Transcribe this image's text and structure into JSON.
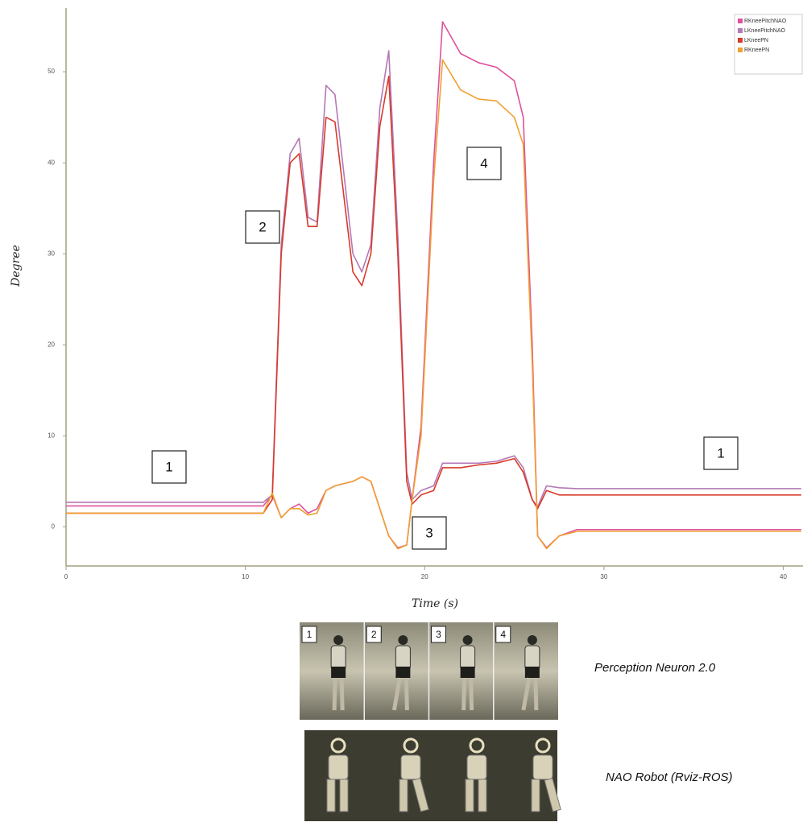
{
  "chart_data": {
    "type": "line",
    "x_label": "Time (s)",
    "y_label": "Degree",
    "x": [
      0,
      11,
      11.5,
      12,
      12.5,
      13,
      13.5,
      14,
      14.5,
      15,
      16,
      16.5,
      17,
      17.5,
      18,
      18.5,
      19,
      19.3,
      19.8,
      20.5,
      21,
      22,
      23,
      24,
      25,
      25.5,
      26,
      26.3,
      26.8,
      27.5,
      28.5,
      41
    ],
    "series": [
      {
        "name": "RKneePitchNAO",
        "color": "#e0509c",
        "values": [
          2.3,
          2.3,
          3.5,
          1,
          2,
          2.5,
          1.5,
          2,
          4,
          4.5,
          5,
          5.5,
          5,
          2,
          -1,
          -2.3,
          -2,
          3,
          11,
          40,
          55.5,
          52,
          51,
          50.5,
          49,
          45,
          20,
          -1,
          -2.3,
          -1,
          -0.3,
          -0.3
        ]
      },
      {
        "name": "LKneePitchNAO",
        "color": "#b478b4",
        "values": [
          2.7,
          2.7,
          3.5,
          31,
          41,
          42.7,
          34,
          33.5,
          48.5,
          47.5,
          30,
          28,
          31,
          46,
          52.3,
          32,
          6,
          3,
          4,
          4.5,
          7,
          7,
          7,
          7.2,
          7.8,
          6.5,
          3,
          2.2,
          4.5,
          4.3,
          4.2,
          4.2
        ]
      },
      {
        "name": "LKneePN",
        "color": "#d83a2a",
        "values": [
          1.5,
          1.5,
          3,
          30,
          40,
          41,
          33,
          33,
          45,
          44.5,
          28,
          26.5,
          30,
          44,
          49.5,
          30,
          5,
          2.5,
          3.5,
          4,
          6.5,
          6.5,
          6.8,
          7,
          7.5,
          6,
          3,
          2,
          4,
          3.5,
          3.5,
          3.5
        ]
      },
      {
        "name": "RKneePN",
        "color": "#f0a030",
        "values": [
          1.5,
          1.5,
          3.7,
          1,
          2,
          2,
          1.3,
          1.5,
          4,
          4.5,
          5,
          5.5,
          5,
          2,
          -1,
          -2.4,
          -2,
          3,
          10,
          38,
          51.3,
          48,
          47,
          46.8,
          45,
          42,
          18,
          -1,
          -2.4,
          -1,
          -0.5,
          -0.5
        ]
      }
    ],
    "xlim": [
      0,
      41.1
    ],
    "ylim": [
      -4.3,
      57
    ],
    "xticks": [
      0,
      10,
      20,
      30,
      40
    ],
    "yticks": [
      0,
      10,
      20,
      30,
      40,
      50
    ],
    "legend": "top-right",
    "annotations": [
      "1",
      "2",
      "3",
      "4",
      "1"
    ]
  },
  "figure_panel": {
    "frame_labels": [
      "1",
      "2",
      "3",
      "4"
    ],
    "rows": [
      "Perception Neuron 2.0",
      "NAO Robot (Rviz-ROS)"
    ]
  }
}
